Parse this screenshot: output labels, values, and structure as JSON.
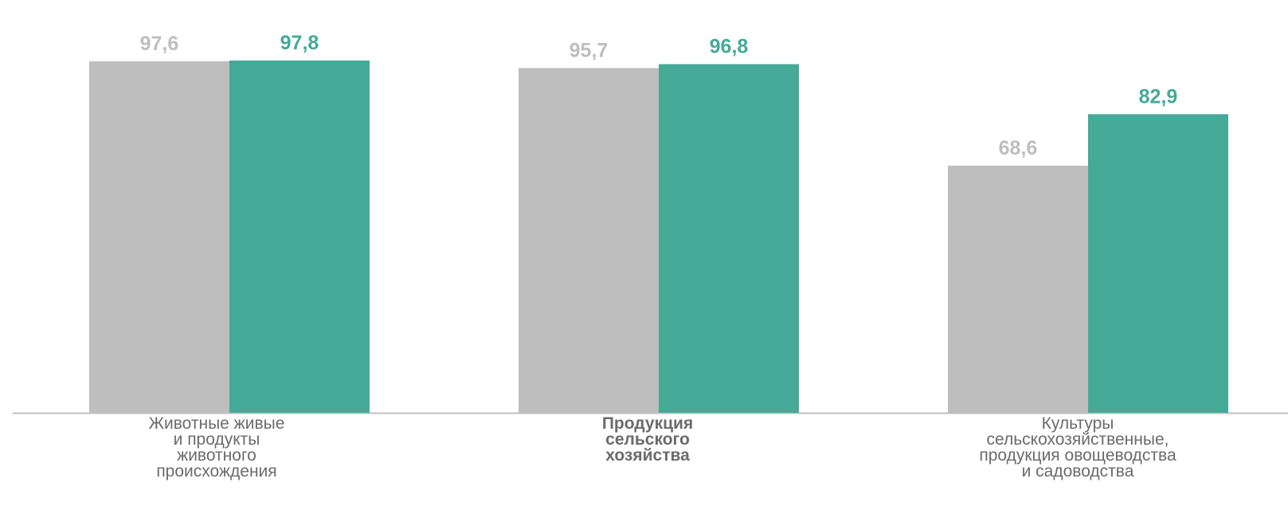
{
  "chart_data": {
    "type": "bar",
    "title": "",
    "xlabel": "",
    "ylabel": "",
    "ylim": [
      0,
      100
    ],
    "grid": false,
    "categories": [
      "Животные живые\nи продукты\nживотного\nпроисхождения",
      "Продукция\nсельского\nхозяйства",
      "Культуры\nсельскохозяйственные,\nпродукция овощеводства\nи садоводства"
    ],
    "bold_categories": [
      1
    ],
    "series": [
      {
        "values": [
          97.6,
          95.7,
          68.6
        ],
        "labels": [
          "97,6",
          "95,7",
          "68,6"
        ],
        "color": "#bebebe",
        "label_color": "#bebebe"
      },
      {
        "values": [
          97.8,
          96.8,
          82.9
        ],
        "labels": [
          "97,8",
          "96,8",
          "82,9"
        ],
        "color": "#45aa98",
        "label_color": "#45aa98"
      }
    ],
    "axis_color": "#bfbfbf"
  }
}
